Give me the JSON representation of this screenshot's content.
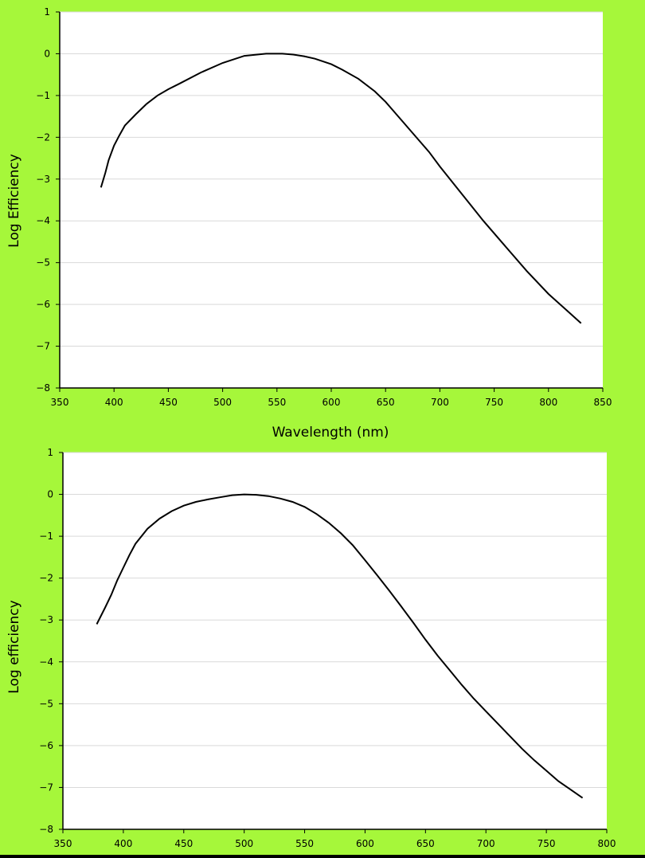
{
  "colors": {
    "background": "#a6f73a",
    "plot_area": "#ffffff",
    "gridline": "#d9d9d9",
    "curve": "#000000"
  },
  "chart_data": [
    {
      "id": "top",
      "type": "line",
      "title": "",
      "xlabel": "Wavelength (nm)",
      "ylabel": "Log Efficiency",
      "xlim": [
        350,
        850
      ],
      "ylim": [
        -8,
        1
      ],
      "x_ticks": [
        350,
        400,
        450,
        500,
        550,
        600,
        650,
        700,
        750,
        800,
        850
      ],
      "y_ticks": [
        1,
        0,
        -1,
        -2,
        -3,
        -4,
        -5,
        -6,
        -7,
        -8
      ],
      "y_tick_labels": [
        "1",
        "0",
        "−1",
        "−2",
        "−3",
        "−4",
        "−5",
        "−6",
        "−7",
        "−8"
      ],
      "grid": "horizontal",
      "legend": "none",
      "series": [
        {
          "x": [
            388,
            392,
            395,
            400,
            405,
            410,
            420,
            430,
            440,
            450,
            460,
            480,
            500,
            520,
            540,
            555,
            565,
            575,
            585,
            600,
            610,
            625,
            640,
            650,
            660,
            675,
            690,
            700,
            720,
            740,
            760,
            780,
            800,
            815,
            830
          ],
          "y": [
            -3.2,
            -2.85,
            -2.55,
            -2.2,
            -1.95,
            -1.72,
            -1.45,
            -1.2,
            -1.0,
            -0.85,
            -0.72,
            -0.45,
            -0.22,
            -0.05,
            0.0,
            0.0,
            -0.02,
            -0.06,
            -0.12,
            -0.25,
            -0.38,
            -0.6,
            -0.9,
            -1.15,
            -1.45,
            -1.9,
            -2.35,
            -2.7,
            -3.35,
            -4.0,
            -4.6,
            -5.2,
            -5.75,
            -6.1,
            -6.45
          ]
        }
      ]
    },
    {
      "id": "bottom",
      "type": "line",
      "title": "",
      "xlabel": "",
      "ylabel": "Log efficiency",
      "xlim": [
        350,
        800
      ],
      "ylim": [
        -8,
        1
      ],
      "x_ticks": [
        350,
        400,
        450,
        500,
        550,
        600,
        650,
        700,
        750,
        800
      ],
      "y_ticks": [
        1,
        0,
        -1,
        -2,
        -3,
        -4,
        -5,
        -6,
        -7,
        -8
      ],
      "y_tick_labels": [
        "1",
        "0",
        "−1",
        "−2",
        "−3",
        "−4",
        "−5",
        "−6",
        "−7",
        "−8"
      ],
      "grid": "horizontal",
      "legend": "none",
      "series": [
        {
          "x": [
            378,
            385,
            390,
            395,
            400,
            405,
            410,
            420,
            430,
            440,
            450,
            460,
            470,
            480,
            490,
            500,
            510,
            520,
            530,
            540,
            550,
            560,
            570,
            580,
            590,
            600,
            610,
            620,
            630,
            640,
            650,
            660,
            670,
            680,
            690,
            700,
            710,
            720,
            730,
            740,
            750,
            760,
            770,
            780
          ],
          "y": [
            -3.1,
            -2.7,
            -2.4,
            -2.05,
            -1.75,
            -1.45,
            -1.18,
            -0.82,
            -0.58,
            -0.4,
            -0.27,
            -0.18,
            -0.12,
            -0.07,
            -0.02,
            0.0,
            -0.01,
            -0.04,
            -0.1,
            -0.18,
            -0.3,
            -0.47,
            -0.68,
            -0.93,
            -1.22,
            -1.57,
            -1.93,
            -2.3,
            -2.68,
            -3.07,
            -3.47,
            -3.85,
            -4.2,
            -4.55,
            -4.88,
            -5.18,
            -5.48,
            -5.78,
            -6.08,
            -6.35,
            -6.6,
            -6.85,
            -7.05,
            -7.25
          ]
        }
      ]
    }
  ]
}
